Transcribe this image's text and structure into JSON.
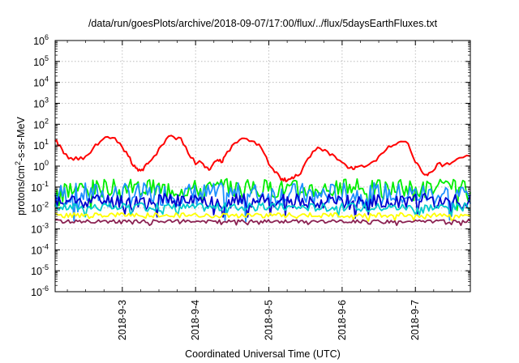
{
  "chart_data": {
    "type": "line",
    "title": "/data/run/goesPlots/archive/2018-09-07/17:00/flux/../flux/5daysEarthFluxes.txt",
    "xlabel": "Coordinated Universal Time (UTC)",
    "ylabel": "protons/cm²-s-sr-MeV",
    "yscale": "log",
    "ylim": [
      1e-06,
      1000000.0
    ],
    "y_ticks": [
      {
        "base": "10",
        "exp": "-6"
      },
      {
        "base": "10",
        "exp": "-5"
      },
      {
        "base": "10",
        "exp": "-4"
      },
      {
        "base": "10",
        "exp": "-3"
      },
      {
        "base": "10",
        "exp": "-2"
      },
      {
        "base": "10",
        "exp": "-1"
      },
      {
        "base": "10",
        "exp": "0"
      },
      {
        "base": "10",
        "exp": "1"
      },
      {
        "base": "10",
        "exp": "2"
      },
      {
        "base": "10",
        "exp": "3"
      },
      {
        "base": "10",
        "exp": "4"
      },
      {
        "base": "10",
        "exp": "5"
      },
      {
        "base": "10",
        "exp": "6"
      }
    ],
    "xlim": [
      "2018-9-2 02:00",
      "2018-9-7 18:00"
    ],
    "x_ticks": [
      "2018-9-3",
      "2018-9-4",
      "2018-9-5",
      "2018-9-6",
      "2018-9-7"
    ],
    "grid": true,
    "series": [
      {
        "color": "#ff0000",
        "x": [
          2.08,
          2.15,
          2.2,
          2.3,
          2.4,
          2.5,
          2.6,
          2.7,
          2.8,
          2.9,
          3.0,
          3.08,
          3.15,
          3.2,
          3.25,
          3.3,
          3.35,
          3.4,
          3.5,
          3.6,
          3.7,
          3.8,
          3.9,
          4.0,
          4.08,
          4.15,
          4.2,
          4.25,
          4.3,
          4.35,
          4.4,
          4.5,
          4.6,
          4.7,
          4.8,
          4.9,
          5.0,
          5.08,
          5.15,
          5.2,
          5.25,
          5.3,
          5.35,
          5.4,
          5.5,
          5.6,
          5.7,
          5.8,
          5.9,
          6.0,
          6.08,
          6.15,
          6.2,
          6.3,
          6.4,
          6.5,
          6.6,
          6.7,
          6.8,
          6.9,
          7.0,
          7.08,
          7.15,
          7.2,
          7.3,
          7.4,
          7.5,
          7.6,
          7.75
        ],
        "values": [
          15,
          10,
          4,
          2.5,
          2,
          3,
          7,
          15,
          25,
          22,
          8,
          3,
          1,
          0.8,
          0.6,
          0.9,
          1.3,
          2,
          7,
          20,
          25,
          22,
          4,
          1.2,
          1.5,
          0.9,
          0.7,
          1.5,
          2,
          1.5,
          3,
          10,
          18,
          20,
          15,
          7,
          1.2,
          0.5,
          0.3,
          0.2,
          0.2,
          0.25,
          0.3,
          0.35,
          1.5,
          5,
          7,
          5,
          3,
          1.5,
          0.8,
          0.7,
          0.9,
          0.9,
          1.5,
          3,
          6,
          10,
          15,
          12,
          1.5,
          0.6,
          0.4,
          0.5,
          1.3,
          1.2,
          1.5,
          2.5,
          3
        ]
      },
      {
        "color": "#00ee00",
        "base": 0.09,
        "amp": 0.45,
        "seed": 3
      },
      {
        "color": "#1e90ff",
        "base": 0.045,
        "amp": 0.55,
        "seed": 7
      },
      {
        "color": "#0000cd",
        "base": 0.022,
        "amp": 0.35,
        "seed": 11
      },
      {
        "color": "#00cccc",
        "base": 0.011,
        "amp": 0.2,
        "seed": 17
      },
      {
        "color": "#ffff00",
        "base": 0.0045,
        "amp": 0.12,
        "seed": 23
      },
      {
        "color": "#8b2252",
        "base": 0.0023,
        "amp": 0.08,
        "seed": 29
      }
    ]
  }
}
